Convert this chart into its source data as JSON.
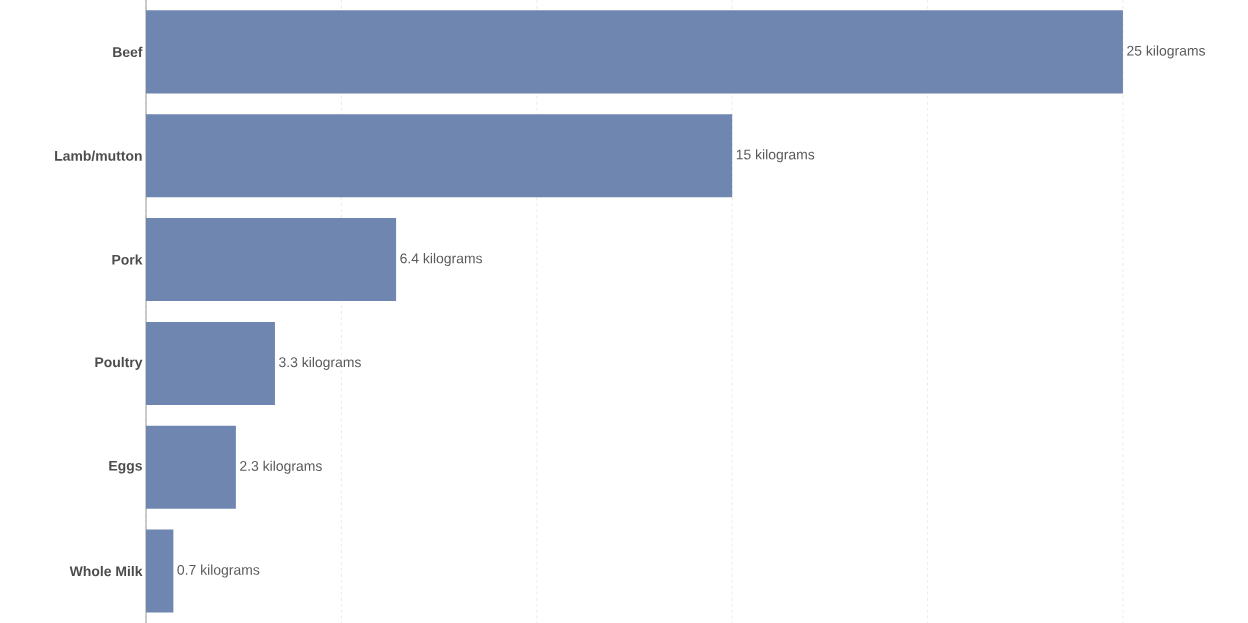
{
  "chart_data": {
    "type": "bar",
    "orientation": "horizontal",
    "categories": [
      "Beef",
      "Lamb/mutton",
      "Pork",
      "Poultry",
      "Eggs",
      "Whole Milk"
    ],
    "values": [
      25,
      15,
      6.4,
      3.3,
      2.3,
      0.7
    ],
    "value_labels": [
      "25 kilograms",
      "15 kilograms",
      "6.4 kilograms",
      "3.3 kilograms",
      "2.3 kilograms",
      "0.7 kilograms"
    ],
    "color": "#6f87b0",
    "grid": "x",
    "tick_labels": "y"
  }
}
